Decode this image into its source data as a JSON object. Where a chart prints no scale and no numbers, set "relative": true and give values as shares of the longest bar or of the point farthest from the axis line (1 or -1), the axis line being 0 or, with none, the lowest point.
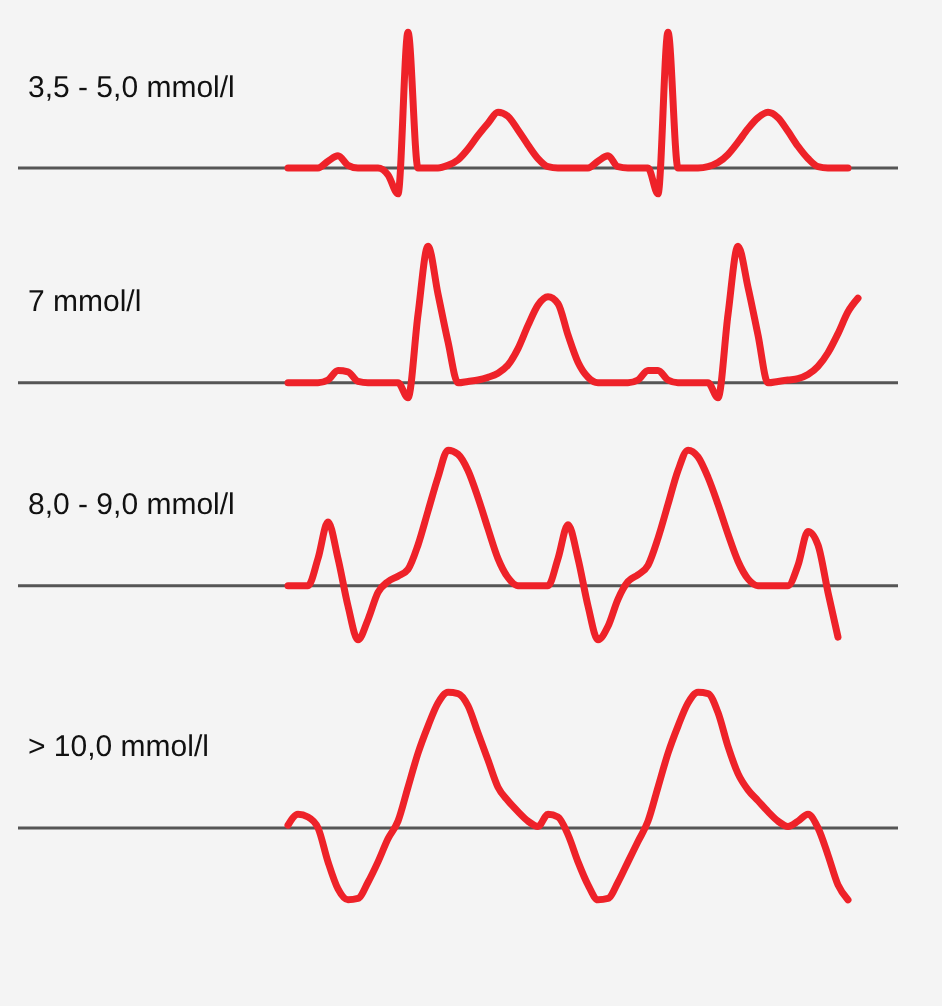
{
  "chart_data": [
    {
      "type": "line",
      "title": "3,5 - 5,0 mmol/l",
      "relative": true,
      "categories": [
        null,
        null,
        null,
        null,
        null,
        null,
        null,
        null,
        null,
        null,
        null,
        null,
        null,
        null,
        null,
        null,
        null,
        null,
        null,
        null,
        null,
        null,
        null,
        null,
        null,
        null,
        null,
        null,
        null,
        null,
        null,
        null,
        null,
        null,
        null,
        null,
        null,
        null,
        null,
        null,
        null,
        null,
        null,
        null,
        null,
        null,
        null,
        null,
        null,
        null,
        null,
        null,
        null,
        null,
        null,
        null,
        null
      ],
      "series": [
        {
          "color": "#ee2229",
          "values": [
            0,
            0,
            0,
            0,
            0.05,
            0.09,
            0.02,
            0,
            0,
            0,
            -0.05,
            -0.19,
            1.0,
            0,
            0,
            0,
            0.02,
            0.06,
            0.14,
            0.24,
            0.33,
            0.41,
            0.38,
            0.28,
            0.17,
            0.07,
            0.01,
            0,
            0,
            0,
            0,
            0.05,
            0.09,
            0.01,
            0,
            0,
            0,
            -0.19,
            1.0,
            0,
            0,
            0,
            0.01,
            0.04,
            0.1,
            0.19,
            0.29,
            0.37,
            0.41,
            0.37,
            0.27,
            0.16,
            0.07,
            0.01,
            0,
            0,
            0
          ]
        }
      ]
    },
    {
      "type": "line",
      "title": "7 mmol/l",
      "relative": true,
      "categories": [
        null,
        null,
        null,
        null,
        null,
        null,
        null,
        null,
        null,
        null,
        null,
        null,
        null,
        null,
        null,
        null,
        null,
        null,
        null,
        null,
        null,
        null,
        null,
        null,
        null,
        null,
        null,
        null,
        null,
        null,
        null,
        null,
        null,
        null,
        null,
        null,
        null,
        null,
        null,
        null,
        null,
        null,
        null,
        null,
        null,
        null,
        null,
        null,
        null,
        null,
        null,
        null,
        null,
        null,
        null,
        null,
        null,
        null
      ],
      "series": [
        {
          "color": "#ee2229",
          "values": [
            0,
            0,
            0,
            0,
            0.02,
            0.09,
            0.08,
            0.01,
            0,
            0,
            0,
            0,
            -0.11,
            0.5,
            1.0,
            0.65,
            0.3,
            0,
            0.01,
            0.02,
            0.04,
            0.07,
            0.13,
            0.25,
            0.42,
            0.57,
            0.63,
            0.58,
            0.35,
            0.15,
            0.04,
            0,
            0,
            0,
            0,
            0.02,
            0.09,
            0.09,
            0.02,
            0,
            0,
            0,
            0,
            -0.11,
            0.5,
            1.0,
            0.7,
            0.35,
            0,
            0.01,
            0.02,
            0.03,
            0.06,
            0.12,
            0.22,
            0.36,
            0.52,
            0.62
          ]
        }
      ]
    },
    {
      "type": "line",
      "title": "8,0 - 9,0 mmol/l",
      "relative": true,
      "categories": [
        null,
        null,
        null,
        null,
        null,
        null,
        null,
        null,
        null,
        null,
        null,
        null,
        null,
        null,
        null,
        null,
        null,
        null,
        null,
        null,
        null,
        null,
        null,
        null,
        null,
        null,
        null,
        null,
        null,
        null,
        null,
        null,
        null,
        null,
        null,
        null,
        null,
        null,
        null,
        null,
        null,
        null,
        null,
        null,
        null,
        null,
        null,
        null,
        null,
        null,
        null,
        null,
        null,
        null,
        null,
        null
      ],
      "series": [
        {
          "color": "#ee2229",
          "values": [
            0,
            0,
            0,
            0.2,
            0.47,
            0.2,
            -0.15,
            -0.4,
            -0.25,
            -0.05,
            0.03,
            0.07,
            0.12,
            0.3,
            0.55,
            0.8,
            1.0,
            0.97,
            0.85,
            0.65,
            0.42,
            0.2,
            0.06,
            0,
            0,
            0,
            0,
            0.2,
            0.45,
            0.2,
            -0.15,
            -0.4,
            -0.3,
            -0.1,
            0.03,
            0.08,
            0.15,
            0.35,
            0.6,
            0.85,
            1.0,
            0.95,
            0.8,
            0.6,
            0.38,
            0.18,
            0.05,
            0,
            0,
            0,
            0,
            0.15,
            0.4,
            0.3,
            -0.05,
            -0.38
          ]
        }
      ]
    },
    {
      "type": "line",
      "title": "> 10,0 mmol/l",
      "relative": true,
      "categories": [
        null,
        null,
        null,
        null,
        null,
        null,
        null,
        null,
        null,
        null,
        null,
        null,
        null,
        null,
        null,
        null,
        null,
        null,
        null,
        null,
        null,
        null,
        null,
        null,
        null,
        null,
        null,
        null,
        null,
        null,
        null,
        null,
        null,
        null,
        null,
        null,
        null,
        null,
        null,
        null,
        null,
        null,
        null,
        null,
        null,
        null,
        null,
        null,
        null,
        null,
        null,
        null,
        null,
        null,
        null,
        null,
        null
      ],
      "series": [
        {
          "color": "#ee2229",
          "values": [
            0.02,
            0.1,
            0.08,
            0,
            -0.25,
            -0.45,
            -0.53,
            -0.52,
            -0.4,
            -0.25,
            -0.08,
            0.05,
            0.3,
            0.55,
            0.75,
            0.92,
            1.0,
            0.99,
            0.9,
            0.7,
            0.5,
            0.3,
            0.2,
            0.12,
            0.05,
            0.01,
            0.1,
            0.08,
            -0.05,
            -0.25,
            -0.42,
            -0.53,
            -0.52,
            -0.4,
            -0.25,
            -0.1,
            0.05,
            0.3,
            0.55,
            0.75,
            0.92,
            1.0,
            0.99,
            0.85,
            0.6,
            0.4,
            0.28,
            0.2,
            0.12,
            0.05,
            0.01,
            0.05,
            0.1,
            0,
            -0.2,
            -0.42,
            -0.53
          ]
        }
      ]
    }
  ]
}
